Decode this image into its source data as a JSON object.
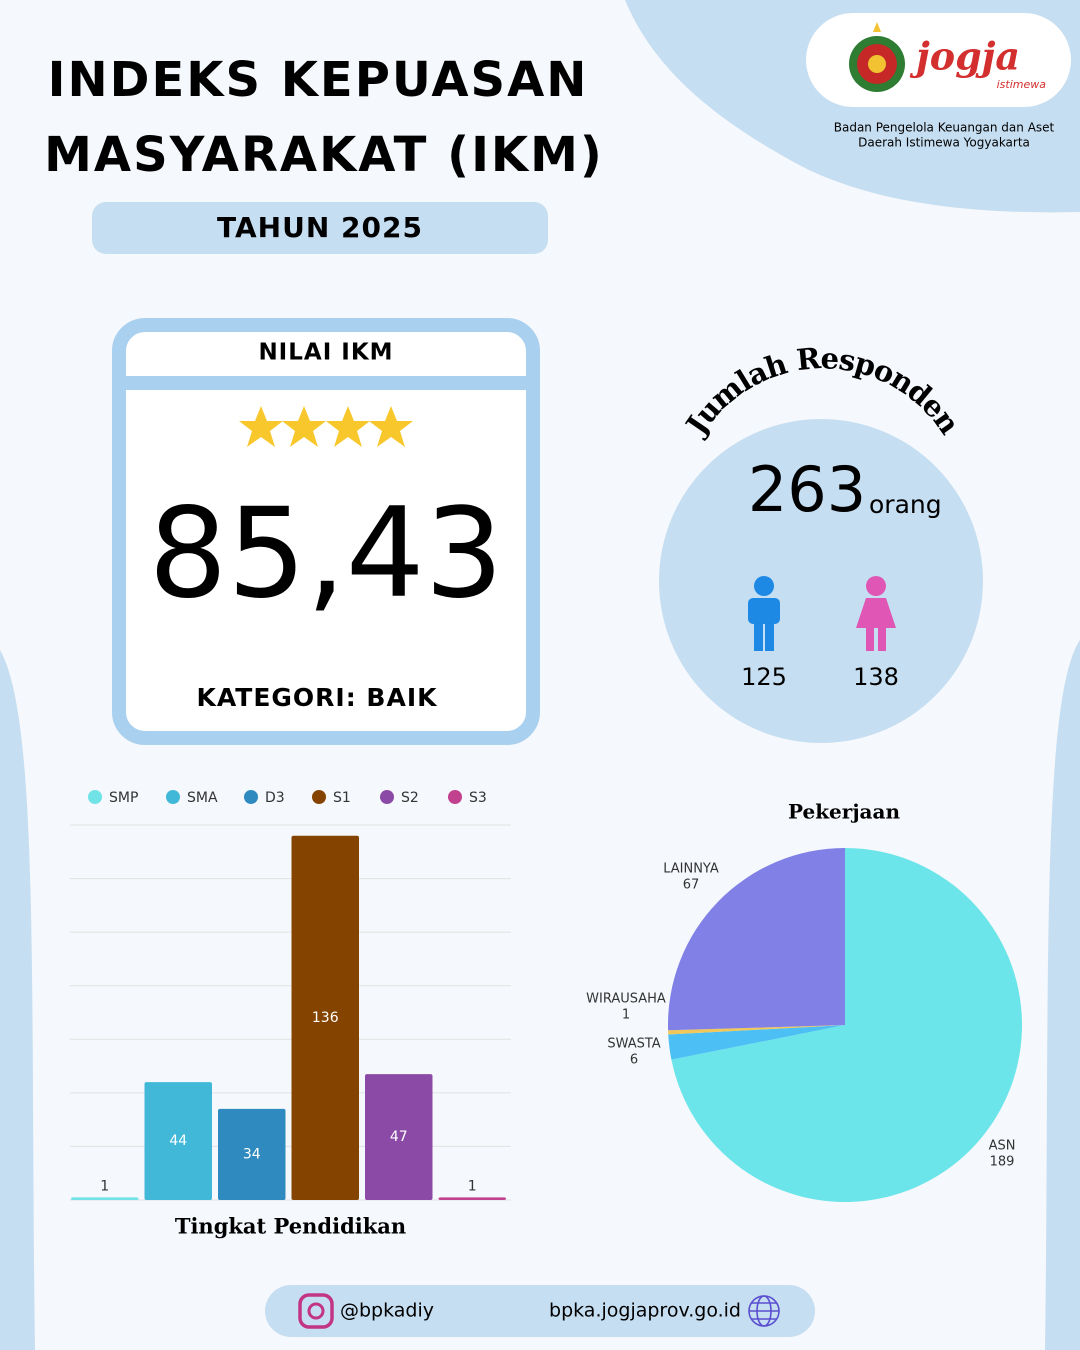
{
  "header": {
    "title_lines": [
      "INDEKS KEPUASAN",
      "MASYARAKAT (IKM)"
    ],
    "year": "TAHUN 2025",
    "logo_text": "jogja",
    "logo_subtext": "istimewa",
    "agency_lines": [
      "Badan Pengelola Keuangan dan Aset",
      "Daerah Istimewa Yogyakarta"
    ]
  },
  "ikm": {
    "heading": "NILAI IKM",
    "score": "85,43",
    "category": "KATEGORI: BAIK"
  },
  "respondents": {
    "heading": "Jumlah Responden",
    "total": "263",
    "unit": "orang",
    "male": "125",
    "female": "138"
  },
  "chart_data": [
    {
      "type": "bar",
      "title": "Tingkat Pendidikan",
      "categories": [
        "SMP",
        "SMA",
        "D3",
        "S1",
        "S2",
        "S3"
      ],
      "values": [
        1,
        44,
        34,
        136,
        47,
        1
      ],
      "colors": [
        "#6fe3e6",
        "#42b8d9",
        "#2f8bbf",
        "#844400",
        "#8b4aa6",
        "#c2418f"
      ],
      "ylim": [
        0,
        140
      ],
      "yticks": [
        0,
        20,
        40,
        60,
        80,
        100,
        120,
        140
      ],
      "grid": true,
      "legend": "top"
    },
    {
      "type": "pie",
      "title": "Pekerjaan",
      "categories": [
        "ASN",
        "SWASTA",
        "WIRAUSAHA",
        "LAINNYA"
      ],
      "values": [
        189,
        6,
        1,
        67
      ],
      "colors": [
        "#6be5e9",
        "#4cc0f5",
        "#f0c75a",
        "#8080e6"
      ]
    }
  ],
  "footer": {
    "instagram": "@bpkadiy",
    "website": "bpka.jogjaprov.go.id"
  }
}
